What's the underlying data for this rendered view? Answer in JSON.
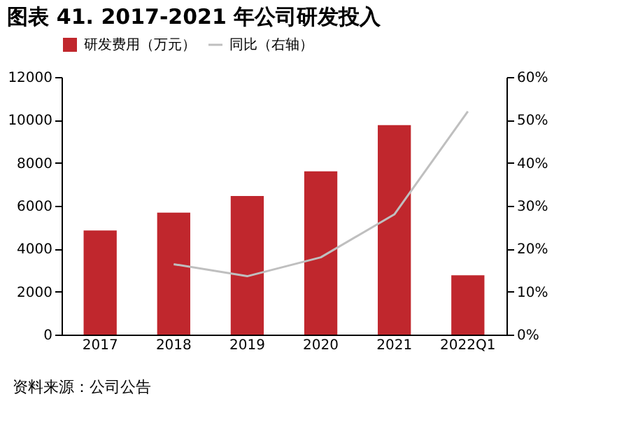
{
  "chart_data": {
    "type": "bar",
    "title": "图表 41. 2017-2021 年公司研发投入",
    "categories": [
      "2017",
      "2018",
      "2019",
      "2020",
      "2021",
      "2022Q1"
    ],
    "series": [
      {
        "name": "研发费用（万元）",
        "color": "#c0272d",
        "values": [
          4850,
          5680,
          6460,
          7610,
          9760,
          2760
        ]
      },
      {
        "name": "同比（右轴）",
        "type": "line",
        "axis": "y2",
        "color": "#bfbfbf",
        "values": [
          null,
          16.4,
          13.6,
          18.0,
          28.0,
          52.0
        ]
      }
    ],
    "ylim": [
      0,
      12000
    ],
    "yticks": [
      0,
      2000,
      4000,
      6000,
      8000,
      10000,
      12000
    ],
    "y2lim": [
      0,
      60
    ],
    "y2ticks": [
      {
        "value": 0,
        "label": "0%"
      },
      {
        "value": 10,
        "label": "10%"
      },
      {
        "value": 20,
        "label": "20%"
      },
      {
        "value": 30,
        "label": "30%"
      },
      {
        "value": 40,
        "label": "40%"
      },
      {
        "value": 50,
        "label": "50%"
      },
      {
        "value": 60,
        "label": "60%"
      }
    ],
    "grid": false,
    "legend": "top",
    "annotations": [
      "资料来源：公司公告"
    ]
  }
}
